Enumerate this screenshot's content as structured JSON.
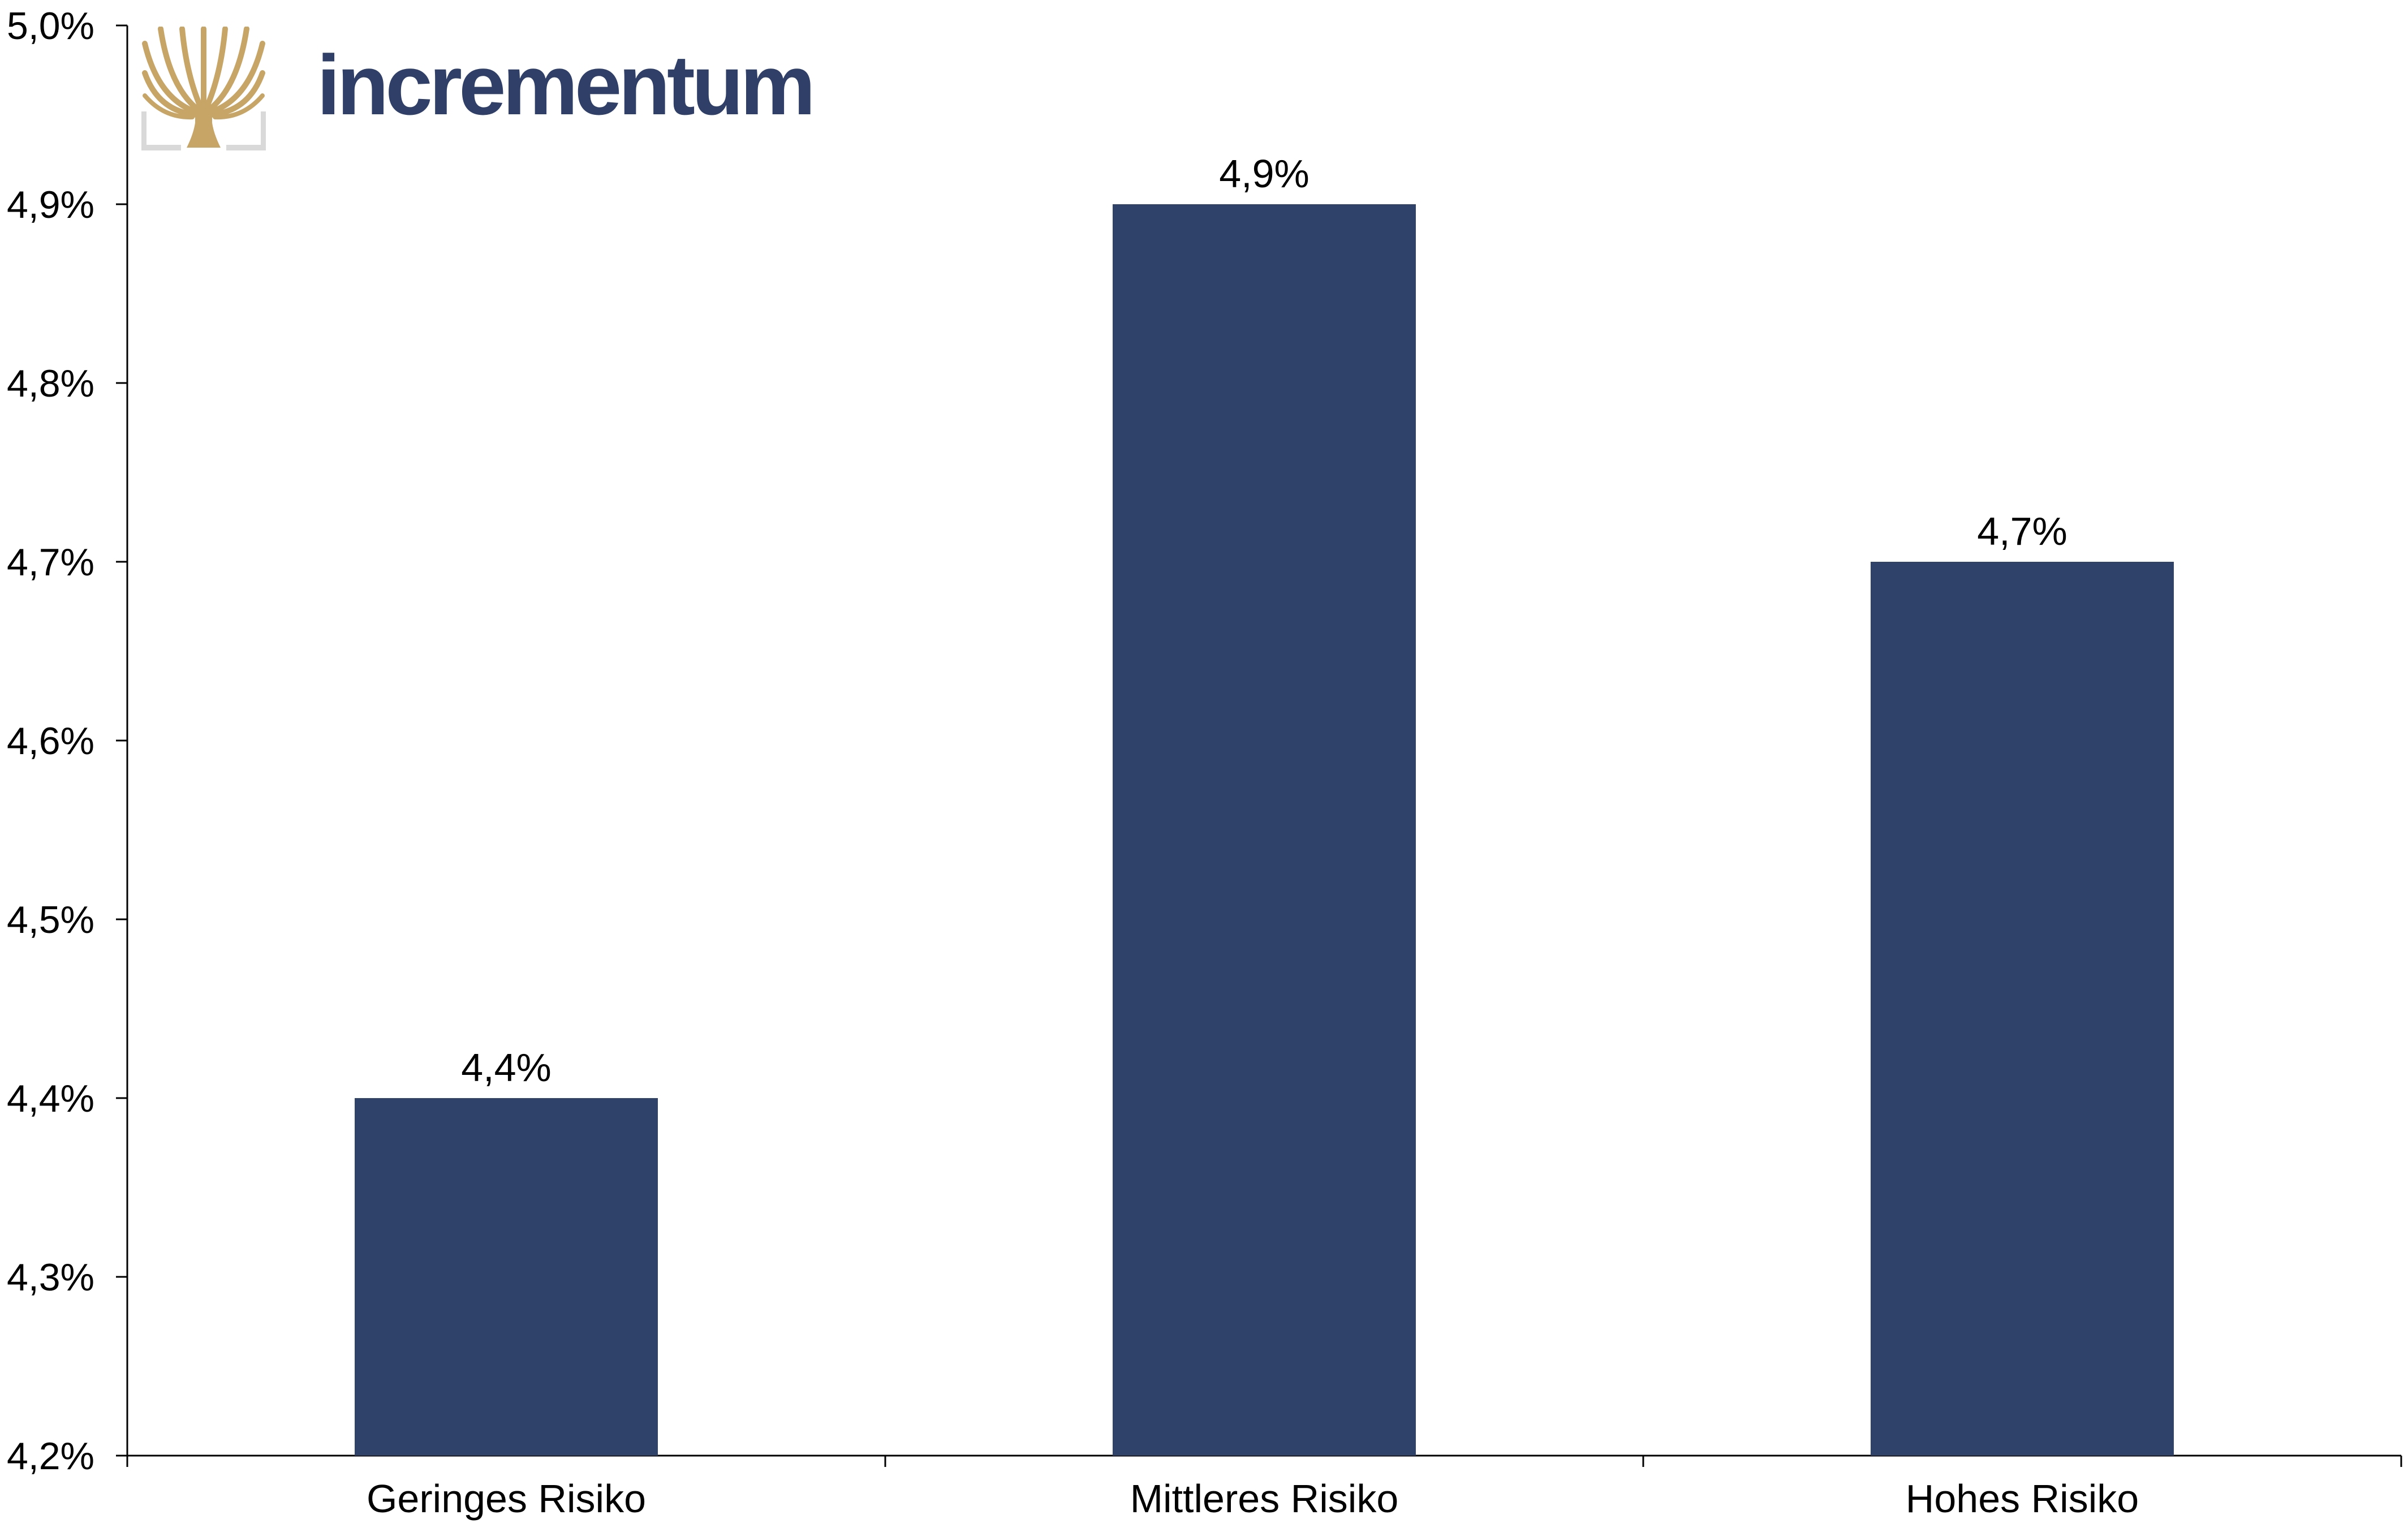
{
  "brand": {
    "name": "incrementum",
    "text_color": "#2f3f68",
    "mark_color": "#c6a566",
    "frame_color": "#d9d9d9",
    "mark_icon": "tree-icon"
  },
  "chart_data": {
    "type": "bar",
    "categories": [
      "Geringes Risiko",
      "Mittleres Risiko",
      "Hohes Risiko"
    ],
    "values": [
      4.4,
      4.9,
      4.7
    ],
    "data_labels": [
      "4,4%",
      "4,9%",
      "4,7%"
    ],
    "title": "",
    "xlabel": "",
    "ylabel": "",
    "ylim": [
      4.2,
      5.0
    ],
    "yticks": [
      4.2,
      4.3,
      4.4,
      4.5,
      4.6,
      4.7,
      4.8,
      4.9,
      5.0
    ],
    "ytick_labels": [
      "4,2%",
      "4,3%",
      "4,4%",
      "4,5%",
      "4,6%",
      "4,7%",
      "4,8%",
      "4,9%",
      "5,0%"
    ],
    "grid": false,
    "legend": "none",
    "bar_color": "#2f4269",
    "axis_color": "#000000"
  }
}
